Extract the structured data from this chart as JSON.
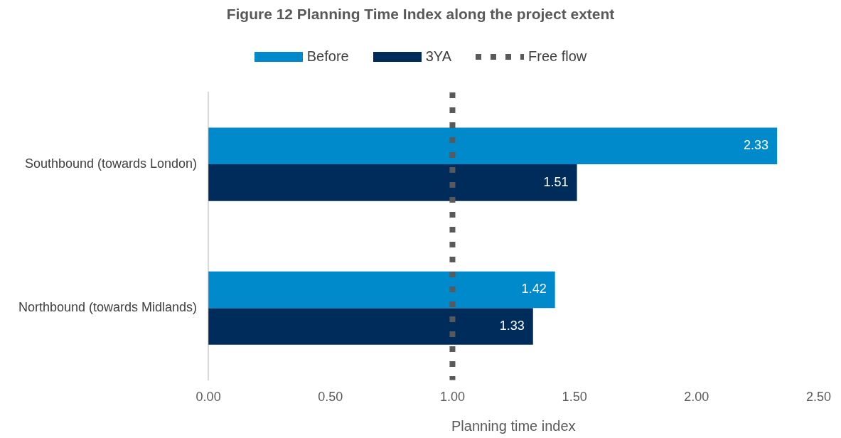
{
  "chart_data": {
    "type": "bar",
    "orientation": "horizontal",
    "title": "Figure 12 Planning Time Index along the project extent",
    "xlabel": "Planning time index",
    "categories": [
      "Southbound (towards London)",
      "Northbound (towards Midlands)"
    ],
    "series": [
      {
        "name": "Before",
        "color": "#0089cb",
        "values": [
          2.33,
          1.42
        ]
      },
      {
        "name": "3YA",
        "color": "#002c5c",
        "values": [
          1.51,
          1.33
        ]
      }
    ],
    "xlim": [
      0,
      2.5
    ],
    "xticks": [
      {
        "value": 0,
        "label": "0.00"
      },
      {
        "value": 0.5,
        "label": "0.50"
      },
      {
        "value": 1,
        "label": "1.00"
      },
      {
        "value": 1.5,
        "label": "1.50"
      },
      {
        "value": 2,
        "label": "2.00"
      },
      {
        "value": 2.5,
        "label": "2.50"
      }
    ],
    "ref_lines": [
      {
        "axis": "x",
        "value": 1,
        "label": "Free flow",
        "color": "#595959",
        "line_style": "dotted"
      }
    ],
    "data_labels": true,
    "grid": false,
    "legend": "top"
  }
}
